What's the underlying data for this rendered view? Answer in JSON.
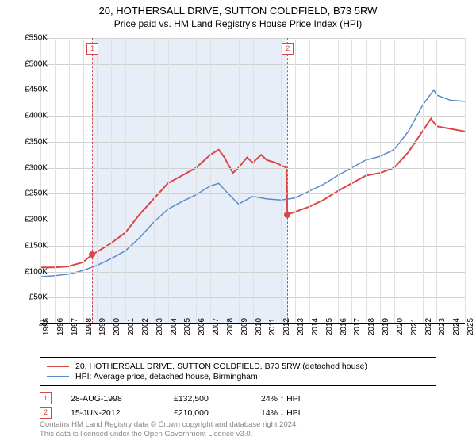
{
  "title": {
    "line1": "20, HOTHERSALL DRIVE, SUTTON COLDFIELD, B73 5RW",
    "line2": "Price paid vs. HM Land Registry's House Price Index (HPI)"
  },
  "chart": {
    "type": "line",
    "xlim": [
      1995,
      2025
    ],
    "ylim": [
      0,
      550000
    ],
    "ytick_step": 50000,
    "xtick_step": 1,
    "y_prefix": "£",
    "y_suffix": "K",
    "background_color": "#ffffff",
    "grid_color": "#e0e0e0",
    "axis_color": "#000000",
    "label_fontsize": 10,
    "highlight_band": {
      "from": 1998.65,
      "to": 2012.45,
      "color": "#e8eef7"
    },
    "series": [
      {
        "name": "property",
        "label": "20, HOTHERSALL DRIVE, SUTTON COLDFIELD, B73 5RW (detached house)",
        "color": "#d94848",
        "width": 2,
        "data": [
          [
            1995,
            108000
          ],
          [
            1996,
            108000
          ],
          [
            1997,
            110000
          ],
          [
            1998,
            118000
          ],
          [
            1998.65,
            132500
          ],
          [
            1999,
            138000
          ],
          [
            2000,
            155000
          ],
          [
            2001,
            175000
          ],
          [
            2002,
            210000
          ],
          [
            2003,
            240000
          ],
          [
            2004,
            270000
          ],
          [
            2005,
            285000
          ],
          [
            2006,
            300000
          ],
          [
            2007,
            325000
          ],
          [
            2007.6,
            335000
          ],
          [
            2008,
            320000
          ],
          [
            2008.6,
            290000
          ],
          [
            2009,
            300000
          ],
          [
            2009.6,
            320000
          ],
          [
            2010,
            310000
          ],
          [
            2010.6,
            325000
          ],
          [
            2011,
            315000
          ],
          [
            2011.6,
            310000
          ],
          [
            2012,
            305000
          ],
          [
            2012.4,
            300000
          ],
          [
            2012.45,
            210000
          ],
          [
            2013,
            215000
          ],
          [
            2014,
            225000
          ],
          [
            2015,
            238000
          ],
          [
            2016,
            255000
          ],
          [
            2017,
            270000
          ],
          [
            2018,
            285000
          ],
          [
            2019,
            290000
          ],
          [
            2020,
            300000
          ],
          [
            2021,
            330000
          ],
          [
            2022,
            370000
          ],
          [
            2022.6,
            395000
          ],
          [
            2023,
            380000
          ],
          [
            2024,
            375000
          ],
          [
            2025,
            370000
          ]
        ]
      },
      {
        "name": "hpi",
        "label": "HPI: Average price, detached house, Birmingham",
        "color": "#5b8bc9",
        "width": 1.5,
        "data": [
          [
            1995,
            90000
          ],
          [
            1996,
            92000
          ],
          [
            1997,
            95000
          ],
          [
            1998,
            102000
          ],
          [
            1999,
            112000
          ],
          [
            2000,
            125000
          ],
          [
            2001,
            140000
          ],
          [
            2002,
            165000
          ],
          [
            2003,
            195000
          ],
          [
            2004,
            220000
          ],
          [
            2005,
            235000
          ],
          [
            2006,
            248000
          ],
          [
            2007,
            265000
          ],
          [
            2007.6,
            270000
          ],
          [
            2008,
            258000
          ],
          [
            2009,
            230000
          ],
          [
            2010,
            245000
          ],
          [
            2011,
            240000
          ],
          [
            2012,
            238000
          ],
          [
            2013,
            242000
          ],
          [
            2014,
            255000
          ],
          [
            2015,
            268000
          ],
          [
            2016,
            285000
          ],
          [
            2017,
            300000
          ],
          [
            2018,
            315000
          ],
          [
            2019,
            322000
          ],
          [
            2020,
            335000
          ],
          [
            2021,
            370000
          ],
          [
            2022,
            420000
          ],
          [
            2022.8,
            450000
          ],
          [
            2023,
            440000
          ],
          [
            2024,
            430000
          ],
          [
            2025,
            428000
          ]
        ]
      }
    ],
    "markers": [
      {
        "id": "1",
        "x": 1998.65,
        "y": 132500
      },
      {
        "id": "2",
        "x": 2012.45,
        "y": 210000
      }
    ]
  },
  "legend": {
    "items": [
      {
        "color": "#d94848",
        "label": "20, HOTHERSALL DRIVE, SUTTON COLDFIELD, B73 5RW (detached house)"
      },
      {
        "color": "#5b8bc9",
        "label": "HPI: Average price, detached house, Birmingham"
      }
    ]
  },
  "events": [
    {
      "id": "1",
      "date": "28-AUG-1998",
      "price": "£132,500",
      "delta": "24% ↑ HPI"
    },
    {
      "id": "2",
      "date": "15-JUN-2012",
      "price": "£210,000",
      "delta": "14% ↓ HPI"
    }
  ],
  "footer": {
    "line1": "Contains HM Land Registry data © Crown copyright and database right 2024.",
    "line2": "This data is licensed under the Open Government Licence v3.0."
  }
}
